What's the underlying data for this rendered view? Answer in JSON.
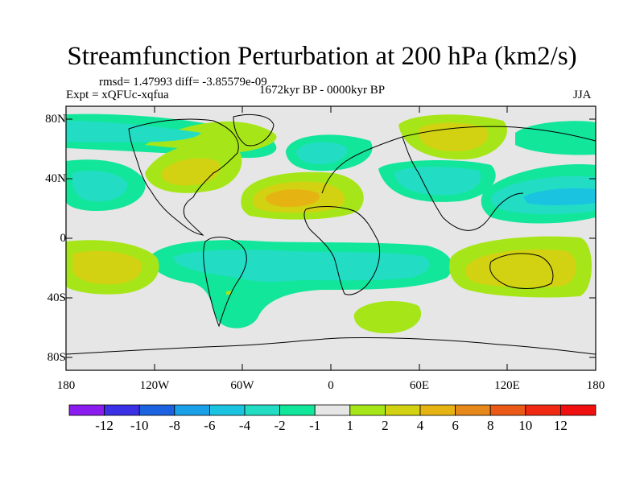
{
  "title": "Streamfunction Perturbation at 200 hPa (km2/s)",
  "stats": "rmsd= 1.47993 diff= -3.85579e-09",
  "experiment": "Expt = xQFUc-xqfua",
  "period": "1672kyr BP - 0000kyr BP",
  "season": "JJA",
  "lat_ticks": [
    "80N",
    "40N",
    "0",
    "40S",
    "80S"
  ],
  "lon_ticks": [
    "180",
    "120W",
    "60W",
    "0",
    "60E",
    "120E",
    "180"
  ],
  "colorbar": {
    "labels": [
      "-12",
      "-10",
      "-8",
      "-6",
      "-4",
      "-2",
      "-1",
      "1",
      "2",
      "4",
      "6",
      "8",
      "10",
      "12"
    ],
    "colors": [
      "#8a1cf0",
      "#3a30e6",
      "#1a62e0",
      "#1aa0e8",
      "#1ac4e0",
      "#22ddc4",
      "#12e69a",
      "#e6e6e6",
      "#a6e619",
      "#d2d212",
      "#e6b412",
      "#e6881a",
      "#ea5a16",
      "#f02a12",
      "#f01010"
    ]
  }
}
